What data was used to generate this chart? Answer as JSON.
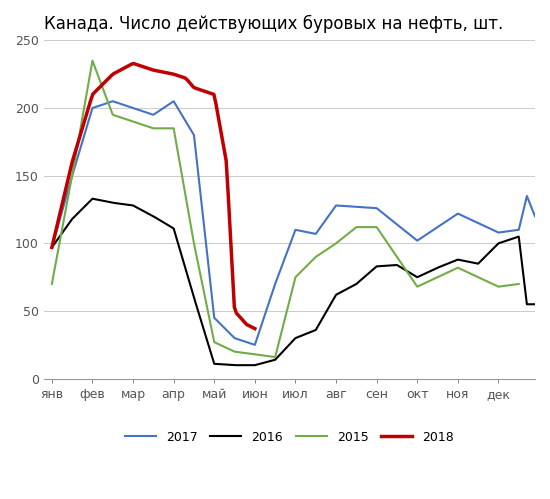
{
  "title": "Канада. Число действующих буровых на нефть, шт.",
  "months": [
    "янв",
    "фев",
    "мар",
    "апр",
    "май",
    "июн",
    "июл",
    "авг",
    "сен",
    "окт",
    "ноя",
    "дек"
  ],
  "colors": {
    "2017": "#4472C4",
    "2016": "#000000",
    "2015": "#70AD47",
    "2018": "#C00000"
  },
  "ylim": [
    0,
    250
  ],
  "yticks": [
    0,
    50,
    100,
    150,
    200,
    250
  ],
  "background": "#FFFFFF"
}
